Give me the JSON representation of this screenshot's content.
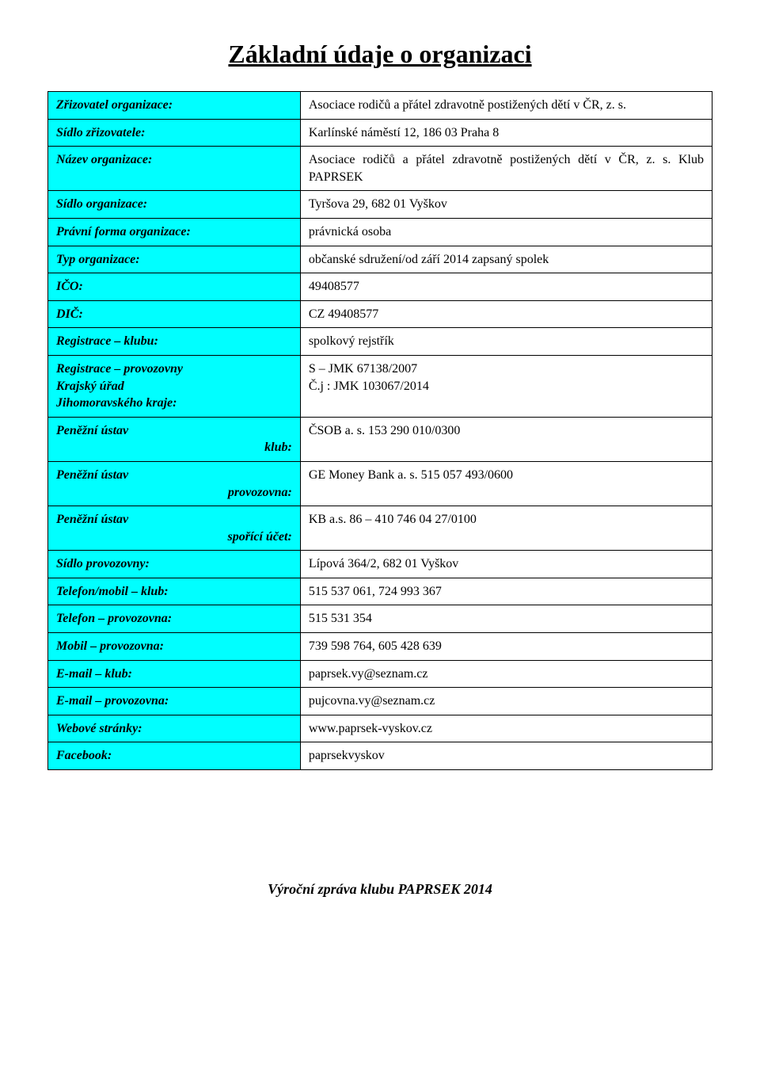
{
  "title": "Základní údaje o organizaci",
  "rows": [
    {
      "label": "Zřizovatel organizace:",
      "value": "Asociace rodičů a přátel zdravotně postižených dětí v ČR, z. s."
    },
    {
      "label": "Sídlo zřizovatele:",
      "value": "Karlínské náměstí 12, 186 03 Praha 8"
    },
    {
      "label": "Název organizace:",
      "value": "Asociace rodičů a přátel zdravotně postižených dětí v ČR, z. s. Klub PAPRSEK"
    },
    {
      "label": "Sídlo organizace:",
      "value": "Tyršova 29, 682 01 Vyškov"
    },
    {
      "label": "Právní forma organizace:",
      "value": "právnická osoba"
    },
    {
      "label": "Typ organizace:",
      "value": "občanské sdružení/od září 2014 zapsaný spolek"
    },
    {
      "label": "IČO:",
      "value": "49408577"
    },
    {
      "label": "DIČ:",
      "value": "CZ 49408577"
    },
    {
      "label": "Registrace – klubu:",
      "value": "spolkový rejstřík"
    }
  ],
  "row_reg_prov": {
    "label_l1": "Registrace – provozovny",
    "label_l2": "Krajský úřad",
    "label_l3": "Jihomoravského kraje:",
    "value_l1": "S – JMK 67138/2007",
    "value_l2": "Č.j : JMK 103067/2014"
  },
  "row_bank_klub": {
    "label_l1": "Peněžní ústav",
    "label_r": "klub:",
    "value": "ČSOB a. s. 153 290 010/0300"
  },
  "row_bank_prov": {
    "label_l1": "Peněžní ústav",
    "label_r": "provozovna:",
    "value": "GE Money Bank a. s. 515 057 493/0600"
  },
  "row_bank_spor": {
    "label_l1": "Peněžní ústav",
    "label_r": "spořící účet:",
    "value": "KB a.s. 86 – 410 746 04 27/0100"
  },
  "rows2": [
    {
      "label": "Sídlo provozovny:",
      "value": "Lípová 364/2, 682 01 Vyškov"
    },
    {
      "label": "Telefon/mobil – klub:",
      "value": "515 537 061, 724 993 367"
    },
    {
      "label": "Telefon – provozovna:",
      "value": "515 531 354"
    },
    {
      "label": "Mobil – provozovna:",
      "value": "739 598 764, 605 428 639"
    },
    {
      "label": "E-mail – klub:",
      "value": "paprsek.vy@seznam.cz"
    },
    {
      "label": "E-mail – provozovna:",
      "value": "pujcovna.vy@seznam.cz"
    },
    {
      "label": "Webové stránky:",
      "value": "www.paprsek-vyskov.cz"
    },
    {
      "label": "Facebook:",
      "value": "paprsekvyskov"
    }
  ],
  "footer": "Výroční zpráva klubu PAPRSEK  2014",
  "style": {
    "label_bg": "#00ffff",
    "value_bg": "#ffffff",
    "border_color": "#000000",
    "font_family": "Georgia, 'Times New Roman', serif",
    "title_fontsize": 32,
    "cell_fontsize": 16,
    "footer_fontsize": 18
  }
}
